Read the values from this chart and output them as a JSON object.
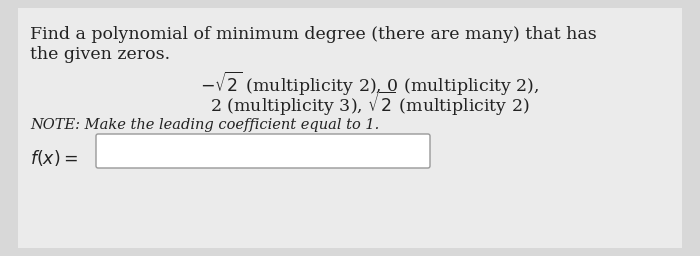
{
  "bg_color": "#d8d8d8",
  "panel_color": "#ebebeb",
  "title_line1": "Find a polynomial of minimum degree (there are many) that has",
  "title_line2": "the given zeros.",
  "zeros_line1": "$-\\sqrt{2}$ (multiplicity 2), 0 (multiplicity 2),",
  "zeros_line2": "2 (multiplicity 3), $\\sqrt{2}$ (multiplicity 2)",
  "note_text": "NOTE: Make the leading coefficient equal to 1.",
  "label_text": "$f(x) =$",
  "main_fontsize": 12.5,
  "zeros_fontsize": 12.5,
  "note_fontsize": 10.5,
  "label_fontsize": 12.5,
  "text_color": "#222222",
  "note_color": "#222222",
  "box_color": "#ffffff",
  "box_edge_color": "#999999"
}
